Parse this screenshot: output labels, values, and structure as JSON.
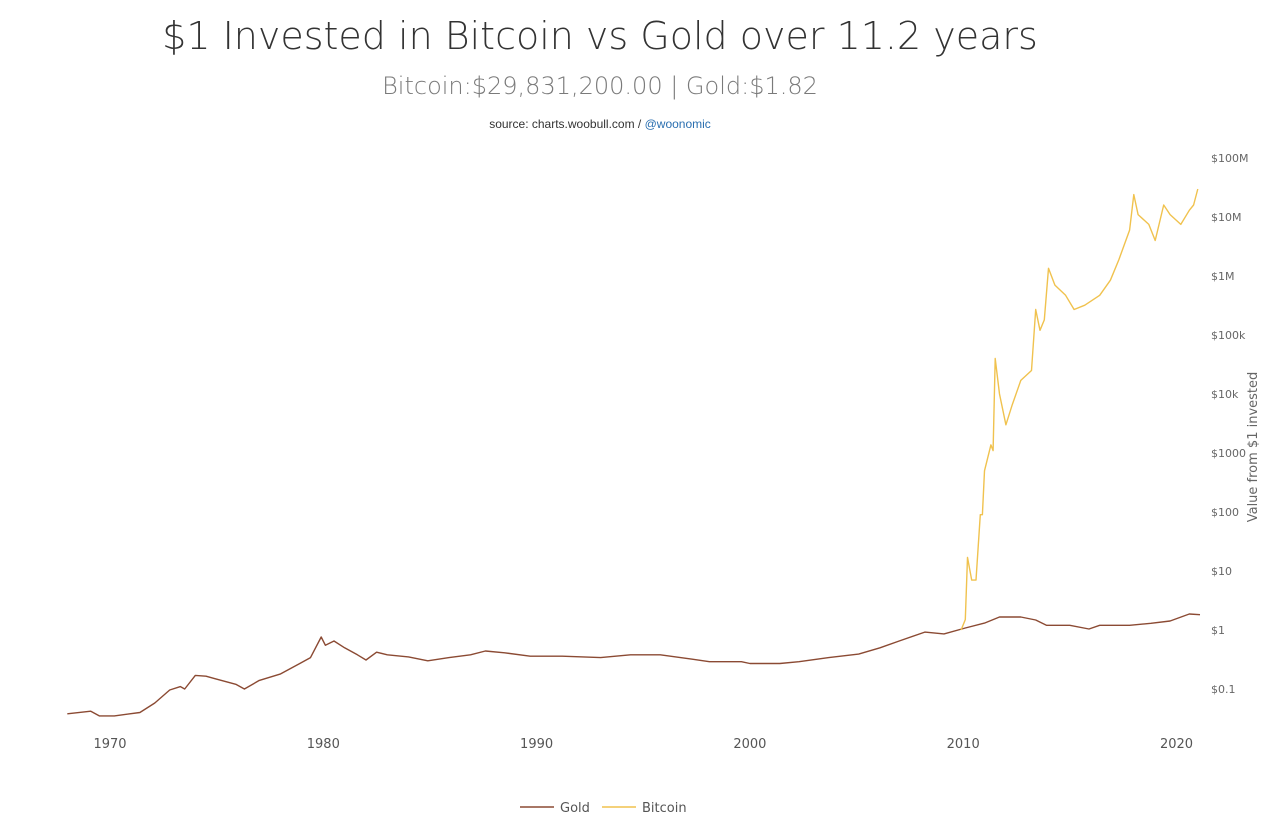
{
  "chart_data": {
    "type": "line",
    "title": "$1 Invested in Bitcoin vs Gold over 11.2 years",
    "subtitle": "Bitcoin:$29,831,200.00 | Gold:$1.82",
    "source_prefix": "source: charts.woobull.com / ",
    "source_link": "@woonomic",
    "ylabel": "Value from $1 invested",
    "yscale": "log",
    "ylim": [
      0.01,
      100000000
    ],
    "xlim": [
      1968,
      2021.2
    ],
    "x_ticks": [
      "1970",
      "1980",
      "1990",
      "2000",
      "2010",
      "2020"
    ],
    "x_tick_values": [
      1970,
      1980,
      1990,
      2000,
      2010,
      2020
    ],
    "y_ticks": [
      "$100M",
      "$10M",
      "$1M",
      "$100k",
      "$10k",
      "$1000",
      "$100",
      "$10",
      "$1",
      "$0.1"
    ],
    "y_tick_values": [
      100000000,
      10000000,
      1000000,
      100000,
      10000,
      1000,
      100,
      10,
      1,
      0.1
    ],
    "legend_position": "bottom-center",
    "series": [
      {
        "name": "Gold",
        "color": "#8b4a33",
        "x": [
          1968.0,
          1969.1,
          1969.5,
          1970.2,
          1971.4,
          1972.1,
          1972.8,
          1973.3,
          1973.5,
          1974.0,
          1974.5,
          1974.9,
          1975.9,
          1976.3,
          1977.0,
          1978.0,
          1978.9,
          1979.4,
          1979.9,
          1980.1,
          1980.5,
          1981.0,
          1981.6,
          1982.0,
          1982.5,
          1983.0,
          1984.0,
          1984.9,
          1985.9,
          1986.9,
          1987.6,
          1988.5,
          1989.7,
          1991.2,
          1993.0,
          1994.4,
          1995.8,
          1997.3,
          1998.1,
          1999.6,
          2000.0,
          2001.4,
          2002.3,
          2003.7,
          2005.1,
          2006.1,
          2007.0,
          2008.2,
          2009.1,
          2010.1,
          2011.0,
          2011.7,
          2012.7,
          2013.4,
          2013.9,
          2015.0,
          2015.9,
          2016.4,
          2017.8,
          2018.8,
          2019.7,
          2020.6,
          2021.1
        ],
        "y": [
          0.038,
          0.042,
          0.035,
          0.035,
          0.04,
          0.058,
          0.096,
          0.11,
          0.1,
          0.17,
          0.165,
          0.15,
          0.12,
          0.1,
          0.14,
          0.18,
          0.27,
          0.34,
          0.76,
          0.55,
          0.65,
          0.5,
          0.38,
          0.31,
          0.42,
          0.38,
          0.35,
          0.3,
          0.34,
          0.38,
          0.44,
          0.41,
          0.36,
          0.36,
          0.34,
          0.38,
          0.38,
          0.32,
          0.29,
          0.29,
          0.27,
          0.27,
          0.29,
          0.34,
          0.39,
          0.5,
          0.65,
          0.92,
          0.86,
          1.08,
          1.31,
          1.66,
          1.66,
          1.48,
          1.2,
          1.2,
          1.04,
          1.2,
          1.2,
          1.3,
          1.42,
          1.87,
          1.82
        ]
      },
      {
        "name": "Bitcoin",
        "color": "#f0c24e",
        "x": [
          2009.9,
          2010.1,
          2010.2,
          2010.4,
          2010.6,
          2010.8,
          2010.9,
          2011.0,
          2011.3,
          2011.4,
          2011.5,
          2011.7,
          2012.0,
          2012.3,
          2012.7,
          2013.2,
          2013.4,
          2013.6,
          2013.8,
          2014.0,
          2014.3,
          2014.8,
          2015.2,
          2015.7,
          2016.4,
          2016.9,
          2017.3,
          2017.8,
          2018.0,
          2018.2,
          2018.7,
          2019.0,
          2019.4,
          2019.7,
          2020.2,
          2020.6,
          2020.8,
          2021.0
        ],
        "y": [
          1,
          1.5,
          17,
          7,
          7,
          90,
          90,
          500,
          1370,
          1100,
          40000,
          10000,
          3000,
          6600,
          17000,
          25000,
          270000,
          120000,
          180000,
          1350000,
          700000,
          470000,
          270000,
          320000,
          470000,
          850000,
          1900000,
          6000000,
          24000000,
          11000000,
          7500000,
          4000000,
          16000000,
          11000000,
          7500000,
          13000000,
          16000000,
          29831200
        ]
      }
    ]
  }
}
